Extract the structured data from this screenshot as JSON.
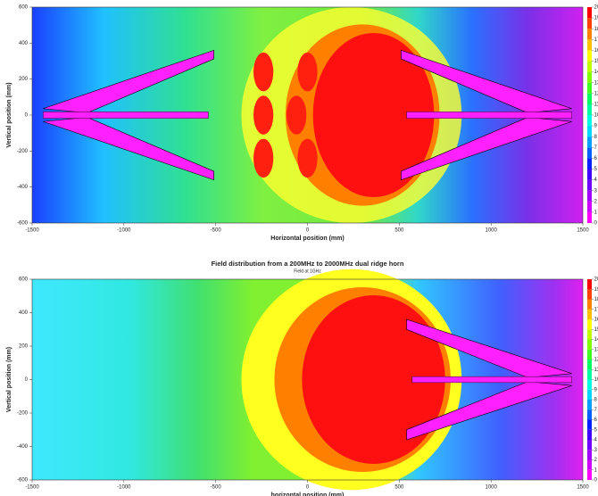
{
  "chart_data": [
    {
      "type": "contour",
      "x_label": "Horizontal position (mm)",
      "y_label": "Vertical position (mm)",
      "xlim": [
        -1500,
        1500
      ],
      "ylim": [
        -600,
        600
      ],
      "xticks": [
        -1500,
        -1000,
        -500,
        0,
        500,
        1000,
        1500
      ],
      "yticks": [
        -600,
        -400,
        -200,
        0,
        200,
        400,
        600
      ],
      "clim": [
        0,
        20
      ],
      "cticks": [
        0,
        1,
        2,
        3,
        4,
        5,
        6,
        7,
        8,
        9,
        10,
        11,
        12,
        13,
        14,
        15,
        16,
        17,
        18,
        19,
        20
      ],
      "colors": [
        "#ff00ff",
        "#d000ff",
        "#a000ff",
        "#7000ff",
        "#4000ff",
        "#0020ff",
        "#0060ff",
        "#00a0ff",
        "#00d8ff",
        "#00ffe0",
        "#00ffa0",
        "#00ff60",
        "#40ff20",
        "#80ff00",
        "#c0ff00",
        "#ffff00",
        "#ffc000",
        "#ff8000",
        "#ff4000",
        "#ff0000"
      ]
    },
    {
      "type": "contour",
      "title": "Field distribution from a 200MHz to 2000MHz dual ridge horn",
      "subtitle": "Field at 1GHz",
      "x_label": "horizontal position (mm)",
      "y_label": "Vertical position (mm)",
      "xlim": [
        -1500,
        1500
      ],
      "ylim": [
        -600,
        600
      ],
      "xticks": [
        -1500,
        -1000,
        -500,
        0,
        500,
        1000,
        1500
      ],
      "yticks": [
        -600,
        -400,
        -200,
        0,
        200,
        400,
        600
      ],
      "clim": [
        0,
        20
      ],
      "cticks": [
        0,
        1,
        2,
        3,
        4,
        5,
        6,
        7,
        8,
        9,
        10,
        11,
        12,
        13,
        14,
        15,
        16,
        17,
        18,
        19,
        20
      ],
      "colors": [
        "#ff00ff",
        "#d000ff",
        "#a000ff",
        "#7000ff",
        "#4000ff",
        "#0020ff",
        "#0060ff",
        "#00a0ff",
        "#00d8ff",
        "#00ffe0",
        "#00ffa0",
        "#00ff60",
        "#40ff20",
        "#80ff00",
        "#c0ff00",
        "#ffff00",
        "#ffc000",
        "#ff8000",
        "#ff4000",
        "#ff0000"
      ]
    }
  ]
}
